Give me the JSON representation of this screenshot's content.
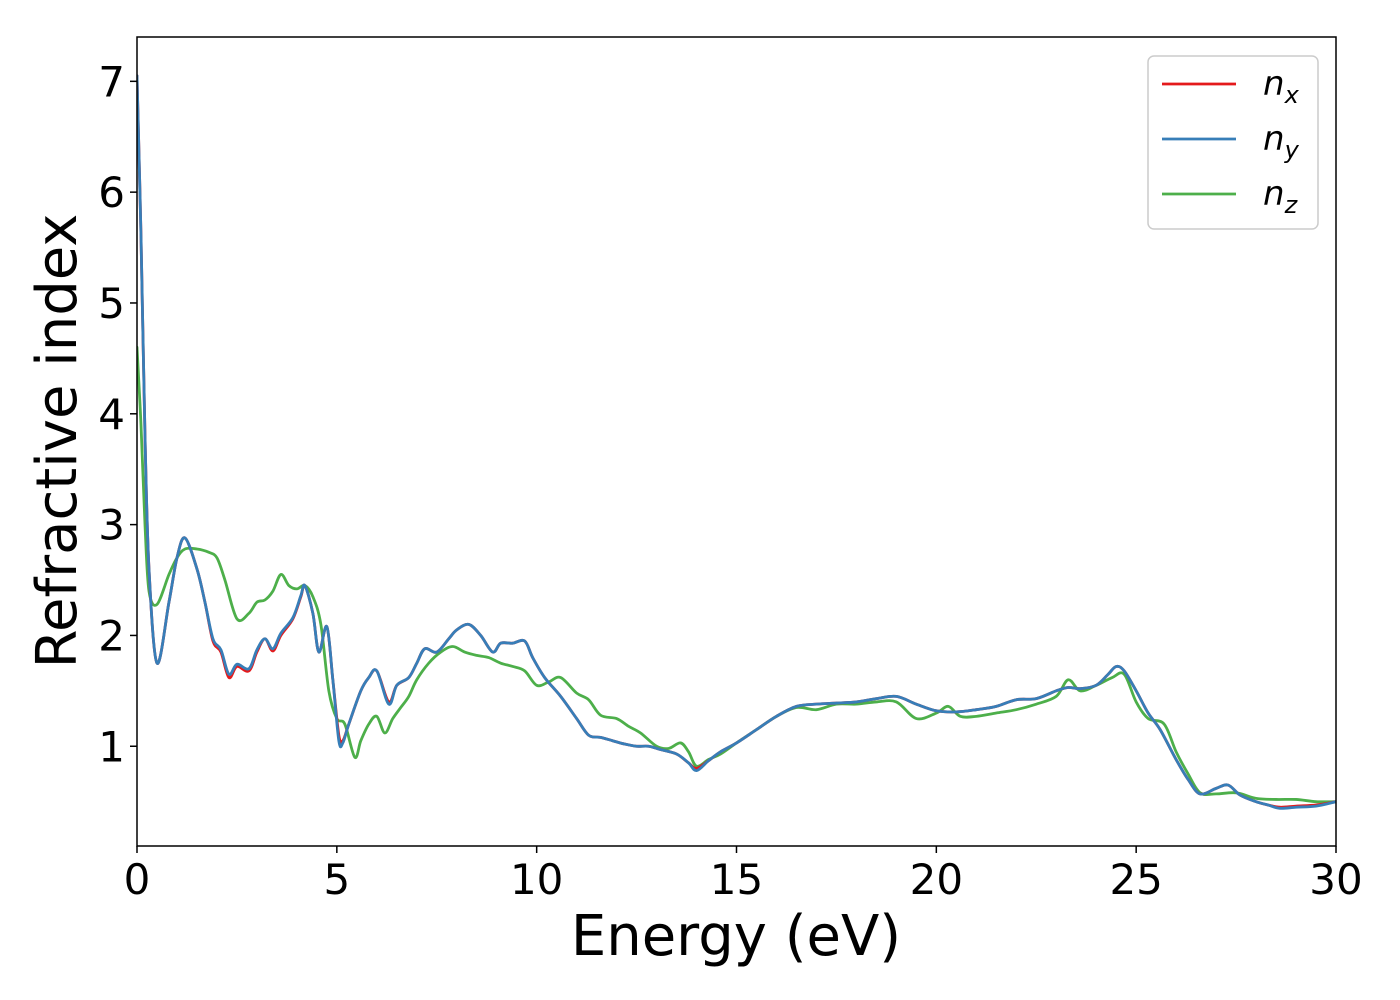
{
  "chart_data": {
    "type": "line",
    "title": "",
    "xlabel": "Energy (eV)",
    "ylabel": "Refractive index",
    "xlim": [
      0,
      30
    ],
    "ylim": [
      0.1,
      7.4
    ],
    "xticks": [
      0,
      5,
      10,
      15,
      20,
      25,
      30
    ],
    "yticks": [
      1,
      2,
      3,
      4,
      5,
      6,
      7
    ],
    "grid": false,
    "legend_position": "top-right",
    "series": [
      {
        "name": "n",
        "subscript": "x",
        "color": "#e41a1c",
        "x": [
          0,
          0.1,
          0.2,
          0.3,
          0.5,
          0.8,
          1.0,
          1.2,
          1.5,
          1.7,
          1.9,
          2.1,
          2.3,
          2.5,
          2.8,
          3.0,
          3.2,
          3.4,
          3.6,
          3.9,
          4.1,
          4.2,
          4.4,
          4.55,
          4.75,
          4.9,
          5.05,
          5.15,
          5.3,
          5.6,
          5.8,
          6.0,
          6.3,
          6.5,
          6.8,
          7.0,
          7.2,
          7.5,
          7.8,
          8.0,
          8.3,
          8.6,
          8.9,
          9.1,
          9.4,
          9.7,
          9.9,
          10.2,
          10.6,
          11.0,
          11.3,
          11.6,
          11.9,
          12.2,
          12.5,
          12.8,
          13.1,
          13.5,
          13.8,
          14.0,
          14.3,
          14.6,
          15.0,
          15.5,
          16.0,
          16.5,
          17.0,
          17.5,
          18.0,
          18.5,
          19.0,
          19.5,
          20.0,
          20.5,
          21.0,
          21.5,
          22.0,
          22.5,
          23.0,
          23.3,
          23.6,
          24.0,
          24.3,
          24.5,
          24.7,
          25.0,
          25.3,
          25.6,
          26.0,
          26.3,
          26.6,
          27.0,
          27.3,
          27.6,
          28.0,
          28.3,
          28.6,
          29.0,
          29.5,
          30.0
        ],
        "y": [
          7.05,
          5.6,
          3.8,
          2.6,
          1.75,
          2.3,
          2.7,
          2.88,
          2.6,
          2.3,
          1.95,
          1.85,
          1.62,
          1.72,
          1.68,
          1.85,
          1.97,
          1.86,
          2.0,
          2.15,
          2.35,
          2.45,
          2.2,
          1.85,
          2.08,
          1.6,
          1.1,
          1.05,
          1.2,
          1.5,
          1.62,
          1.68,
          1.4,
          1.55,
          1.62,
          1.75,
          1.88,
          1.85,
          1.97,
          2.05,
          2.1,
          2.0,
          1.85,
          1.93,
          1.93,
          1.95,
          1.8,
          1.62,
          1.45,
          1.25,
          1.1,
          1.08,
          1.05,
          1.02,
          1.0,
          1.0,
          0.97,
          0.93,
          0.85,
          0.8,
          0.87,
          0.95,
          1.03,
          1.15,
          1.27,
          1.36,
          1.38,
          1.39,
          1.4,
          1.43,
          1.45,
          1.38,
          1.32,
          1.31,
          1.33,
          1.36,
          1.42,
          1.43,
          1.5,
          1.53,
          1.52,
          1.55,
          1.65,
          1.72,
          1.68,
          1.5,
          1.3,
          1.15,
          0.88,
          0.7,
          0.57,
          0.62,
          0.65,
          0.56,
          0.5,
          0.47,
          0.45,
          0.46,
          0.47,
          0.5
        ]
      },
      {
        "name": "n",
        "subscript": "y",
        "color": "#377eb8",
        "x": [
          0,
          0.1,
          0.2,
          0.3,
          0.5,
          0.8,
          1.0,
          1.2,
          1.5,
          1.7,
          1.9,
          2.1,
          2.3,
          2.5,
          2.8,
          3.0,
          3.2,
          3.4,
          3.6,
          3.9,
          4.1,
          4.2,
          4.4,
          4.55,
          4.75,
          4.9,
          5.05,
          5.15,
          5.3,
          5.6,
          5.8,
          6.0,
          6.3,
          6.5,
          6.8,
          7.0,
          7.2,
          7.5,
          7.8,
          8.0,
          8.3,
          8.6,
          8.9,
          9.1,
          9.4,
          9.7,
          9.9,
          10.2,
          10.6,
          11.0,
          11.3,
          11.6,
          11.9,
          12.2,
          12.5,
          12.8,
          13.1,
          13.5,
          13.8,
          14.0,
          14.3,
          14.6,
          15.0,
          15.5,
          16.0,
          16.5,
          17.0,
          17.5,
          18.0,
          18.5,
          19.0,
          19.5,
          20.0,
          20.5,
          21.0,
          21.5,
          22.0,
          22.5,
          23.0,
          23.3,
          23.6,
          24.0,
          24.3,
          24.5,
          24.7,
          25.0,
          25.3,
          25.6,
          26.0,
          26.3,
          26.6,
          27.0,
          27.3,
          27.6,
          28.0,
          28.3,
          28.6,
          29.0,
          29.5,
          30.0
        ],
        "y": [
          7.05,
          5.6,
          3.8,
          2.6,
          1.75,
          2.3,
          2.7,
          2.88,
          2.6,
          2.3,
          1.97,
          1.87,
          1.65,
          1.74,
          1.7,
          1.87,
          1.97,
          1.88,
          2.02,
          2.16,
          2.36,
          2.45,
          2.2,
          1.85,
          2.08,
          1.6,
          1.05,
          1.03,
          1.2,
          1.5,
          1.62,
          1.68,
          1.38,
          1.55,
          1.62,
          1.75,
          1.88,
          1.85,
          1.97,
          2.05,
          2.1,
          2.0,
          1.85,
          1.93,
          1.93,
          1.95,
          1.8,
          1.62,
          1.45,
          1.25,
          1.1,
          1.08,
          1.05,
          1.02,
          1.0,
          1.0,
          0.97,
          0.93,
          0.85,
          0.78,
          0.87,
          0.95,
          1.03,
          1.15,
          1.27,
          1.36,
          1.38,
          1.39,
          1.4,
          1.43,
          1.45,
          1.38,
          1.32,
          1.31,
          1.33,
          1.36,
          1.42,
          1.43,
          1.5,
          1.53,
          1.52,
          1.55,
          1.65,
          1.72,
          1.68,
          1.5,
          1.3,
          1.15,
          0.88,
          0.7,
          0.57,
          0.62,
          0.65,
          0.56,
          0.5,
          0.47,
          0.44,
          0.45,
          0.46,
          0.5
        ]
      },
      {
        "name": "n",
        "subscript": "z",
        "color": "#4daf4a",
        "x": [
          0,
          0.1,
          0.2,
          0.3,
          0.5,
          0.8,
          1.0,
          1.2,
          1.5,
          1.8,
          2.0,
          2.2,
          2.5,
          2.8,
          3.0,
          3.2,
          3.4,
          3.6,
          3.8,
          4.0,
          4.2,
          4.4,
          4.6,
          4.8,
          5.0,
          5.2,
          5.45,
          5.6,
          5.8,
          6.0,
          6.2,
          6.4,
          6.6,
          6.8,
          7.0,
          7.3,
          7.6,
          7.9,
          8.2,
          8.5,
          8.8,
          9.1,
          9.4,
          9.7,
          10.0,
          10.3,
          10.6,
          11.0,
          11.3,
          11.6,
          12.0,
          12.3,
          12.6,
          13.0,
          13.3,
          13.6,
          13.8,
          14.0,
          14.3,
          14.6,
          15.0,
          15.5,
          16.0,
          16.5,
          17.0,
          17.5,
          18.0,
          18.5,
          19.0,
          19.5,
          20.0,
          20.3,
          20.6,
          21.0,
          21.5,
          22.0,
          22.5,
          23.0,
          23.3,
          23.6,
          24.0,
          24.4,
          24.7,
          25.0,
          25.3,
          25.7,
          26.0,
          26.3,
          26.6,
          27.0,
          27.5,
          28.0,
          28.5,
          29.0,
          29.5,
          30.0
        ],
        "y": [
          4.6,
          3.9,
          3.0,
          2.4,
          2.28,
          2.55,
          2.7,
          2.78,
          2.78,
          2.75,
          2.7,
          2.5,
          2.15,
          2.2,
          2.3,
          2.32,
          2.4,
          2.55,
          2.45,
          2.42,
          2.45,
          2.35,
          2.1,
          1.5,
          1.25,
          1.2,
          0.9,
          1.05,
          1.2,
          1.27,
          1.12,
          1.25,
          1.35,
          1.45,
          1.6,
          1.75,
          1.85,
          1.9,
          1.85,
          1.82,
          1.8,
          1.75,
          1.72,
          1.68,
          1.55,
          1.58,
          1.62,
          1.48,
          1.42,
          1.28,
          1.25,
          1.18,
          1.12,
          1.0,
          0.98,
          1.03,
          0.95,
          0.82,
          0.88,
          0.93,
          1.03,
          1.15,
          1.27,
          1.35,
          1.33,
          1.38,
          1.38,
          1.4,
          1.4,
          1.25,
          1.3,
          1.36,
          1.27,
          1.27,
          1.3,
          1.33,
          1.38,
          1.45,
          1.6,
          1.5,
          1.55,
          1.62,
          1.65,
          1.4,
          1.25,
          1.2,
          0.95,
          0.75,
          0.58,
          0.57,
          0.58,
          0.53,
          0.52,
          0.52,
          0.5,
          0.5
        ]
      }
    ]
  }
}
